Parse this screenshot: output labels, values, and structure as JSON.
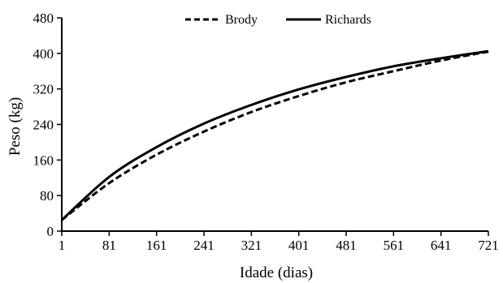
{
  "chart_data": {
    "type": "line",
    "title": "",
    "xlabel": "Idade (dias)",
    "ylabel": "Peso (kg)",
    "xlim": [
      1,
      721
    ],
    "ylim": [
      0,
      480
    ],
    "xticks": [
      "1",
      "81",
      "161",
      "241",
      "321",
      "401",
      "481",
      "561",
      "641",
      "721"
    ],
    "yticks": [
      "0",
      "80",
      "160",
      "240",
      "320",
      "400",
      "480"
    ],
    "grid": false,
    "legend_position": "top-center",
    "x": [
      1,
      81,
      161,
      241,
      321,
      401,
      481,
      561,
      641,
      721
    ],
    "series": [
      {
        "name": "Brody",
        "style": "dashed",
        "color": "#000000",
        "values": [
          25,
          108,
          172,
          224,
          268,
          304,
          335,
          360,
          384,
          404
        ]
      },
      {
        "name": "Richards",
        "style": "solid",
        "color": "#000000",
        "values": [
          25,
          122,
          189,
          242,
          284,
          319,
          347,
          371,
          389,
          405
        ]
      }
    ]
  }
}
